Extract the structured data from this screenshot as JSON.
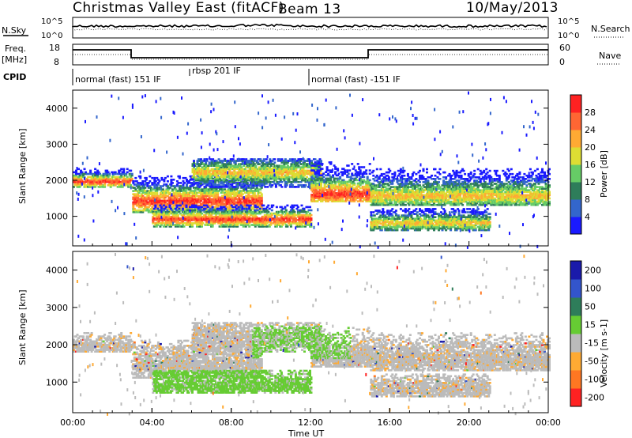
{
  "header": {
    "station": "Christmas Valley East (fitACF)",
    "beam": "Beam 13",
    "date": "10/May/2013"
  },
  "top_panels": {
    "nsky_label": "N.Sky",
    "nsky_ticks": [
      "10^5",
      "10^0"
    ],
    "nsearch_label": "N.Search",
    "nsearch_ticks": [
      "10^5",
      "10^0"
    ],
    "freq_label_1": "Freq.",
    "freq_label_2": "[MHz]",
    "freq_ticks": [
      "18",
      "8"
    ],
    "nave_label": "Nave",
    "nave_ticks": [
      "60",
      "0"
    ],
    "cpid_label": "CPID",
    "cpid_segments": [
      {
        "label": "normal (fast) 151 IF",
        "start_h": 0,
        "end_h": 6
      },
      {
        "label": "rbsp 201 IF",
        "start_h": 6,
        "end_h": 12
      },
      {
        "label": "normal (fast) -151 IF",
        "start_h": 12,
        "end_h": 24
      }
    ]
  },
  "chart_data": [
    {
      "type": "heatmap",
      "name": "power",
      "ylabel": "Slant Range [km]",
      "ylim": [
        180,
        4500
      ],
      "yticks": [
        "1000",
        "2000",
        "3000",
        "4000"
      ],
      "xlim_hours": [
        0,
        24
      ],
      "colorbar_label": "Power [dB]",
      "colorbar_ticks": [
        "4",
        "8",
        "12",
        "16",
        "20",
        "24",
        "28"
      ],
      "colors": [
        "#1a1aff",
        "#3366cc",
        "#2e7d5a",
        "#66cc66",
        "#dddd33",
        "#ffaa33",
        "#ff6633",
        "#ff2222"
      ],
      "bands": [
        {
          "t": [
            0,
            3
          ],
          "range_km": [
            1800,
            2300
          ],
          "core_km": 1950,
          "level": "high"
        },
        {
          "t": [
            3,
            9.5
          ],
          "range_km": [
            1100,
            2100
          ],
          "core_km": 1400,
          "level": "high"
        },
        {
          "t": [
            4,
            12
          ],
          "range_km": [
            700,
            1300
          ],
          "core_km": 900,
          "level": "high"
        },
        {
          "t": [
            6,
            12.5
          ],
          "range_km": [
            1800,
            2600
          ],
          "core_km": 2200,
          "level": "mid"
        },
        {
          "t": [
            12,
            15
          ],
          "range_km": [
            1400,
            2500
          ],
          "core_km": 1600,
          "level": "high"
        },
        {
          "t": [
            15,
            24
          ],
          "range_km": [
            1300,
            2300
          ],
          "core_km": 1550,
          "level": "mid"
        },
        {
          "t": [
            15,
            21
          ],
          "range_km": [
            600,
            1200
          ],
          "core_km": 800,
          "level": "mid"
        }
      ]
    },
    {
      "type": "heatmap",
      "name": "velocity",
      "ylabel": "Slant Range [km]",
      "xlabel": "Time UT",
      "ylim": [
        180,
        4500
      ],
      "yticks": [
        "1000",
        "2000",
        "3000",
        "4000"
      ],
      "xticks": [
        "00:00",
        "04:00",
        "08:00",
        "12:00",
        "16:00",
        "20:00",
        "00:00"
      ],
      "xlim_hours": [
        0,
        24
      ],
      "colorbar_label": "Velocity [m s-1]",
      "colorbar_ticks": [
        "200",
        "100",
        "50",
        "15",
        "-15",
        "-50",
        "-100",
        "-200"
      ],
      "colors": [
        "#1a1aaa",
        "#3355cc",
        "#2e7d5a",
        "#66cc33",
        "#bbbbbb",
        "#ffaa33",
        "#ff7722",
        "#ff2222"
      ]
    }
  ]
}
